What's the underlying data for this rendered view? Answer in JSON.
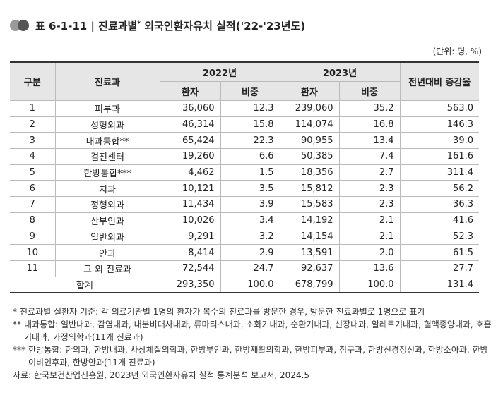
{
  "title": {
    "prefix": "표 6-1-11 | 진료과별",
    "sup": "*",
    "rest": " 외국인환자유치 실적('22-'23년도)"
  },
  "unit": "(단위: 명, %)",
  "headers": {
    "category": "구분",
    "dept": "진료과",
    "y2022": "2022년",
    "y2023": "2023년",
    "patients": "환자",
    "ratio": "비중",
    "growth": "전년대비 증감율"
  },
  "rows": [
    {
      "no": "1",
      "dept": "피부과",
      "p22": "36,060",
      "r22": "12.3",
      "p23": "239,060",
      "r23": "35.2",
      "g": "563.0"
    },
    {
      "no": "2",
      "dept": "성형외과",
      "p22": "46,314",
      "r22": "15.8",
      "p23": "114,074",
      "r23": "16.8",
      "g": "146.3"
    },
    {
      "no": "3",
      "dept": "내과통합**",
      "p22": "65,424",
      "r22": "22.3",
      "p23": "90,955",
      "r23": "13.4",
      "g": "39.0"
    },
    {
      "no": "4",
      "dept": "검진센터",
      "p22": "19,260",
      "r22": "6.6",
      "p23": "50,385",
      "r23": "7.4",
      "g": "161.6"
    },
    {
      "no": "5",
      "dept": "한방통합***",
      "p22": "4,462",
      "r22": "1.5",
      "p23": "18,356",
      "r23": "2.7",
      "g": "311.4"
    },
    {
      "no": "6",
      "dept": "치과",
      "p22": "10,121",
      "r22": "3.5",
      "p23": "15,812",
      "r23": "2.3",
      "g": "56.2"
    },
    {
      "no": "7",
      "dept": "정형외과",
      "p22": "11,434",
      "r22": "3.9",
      "p23": "15,583",
      "r23": "2.3",
      "g": "36.3"
    },
    {
      "no": "8",
      "dept": "산부인과",
      "p22": "10,026",
      "r22": "3.4",
      "p23": "14,192",
      "r23": "2.1",
      "g": "41.6"
    },
    {
      "no": "9",
      "dept": "일반외과",
      "p22": "9,291",
      "r22": "3.2",
      "p23": "14,154",
      "r23": "2.1",
      "g": "52.3"
    },
    {
      "no": "10",
      "dept": "안과",
      "p22": "8,414",
      "r22": "2.9",
      "p23": "13,591",
      "r23": "2.0",
      "g": "61.5"
    },
    {
      "no": "11",
      "dept": "그 외 진료과",
      "p22": "72,544",
      "r22": "24.7",
      "p23": "92,637",
      "r23": "13.6",
      "g": "27.7"
    }
  ],
  "total": {
    "label": "합계",
    "p22": "293,350",
    "r22": "100.0",
    "p23": "678,799",
    "r23": "100.0",
    "g": "131.4"
  },
  "notes": [
    {
      "mark": "*",
      "text": "진료과별 실환자 기준: 각 의료기관별 1명의 환자가 복수의 진료과를 방문한 경우, 방문한 진료과별로 1명으로 표기"
    },
    {
      "mark": "**",
      "text": "내과통합: 일반내과, 감염내과, 내분비대사내과, 류마티스내과, 소화기내과, 순환기내과, 신장내과, 알레르기내과, 혈액종양내과, 호흡기내과, 가정의학과(11개 진료과)"
    },
    {
      "mark": "***",
      "text": "한방통합: 한의과, 한방내과, 사상체질의학과, 한방부인과, 한방재활의학과, 한방피부과, 침구과, 한방신경정신과, 한방소아과, 한방이비인후과, 한방안과(11개 진료과)"
    }
  ],
  "source": "자료: 한국보건산업진흥원, 2023년 외국인환자유치 실적 통계분석 보고서, 2024.5"
}
